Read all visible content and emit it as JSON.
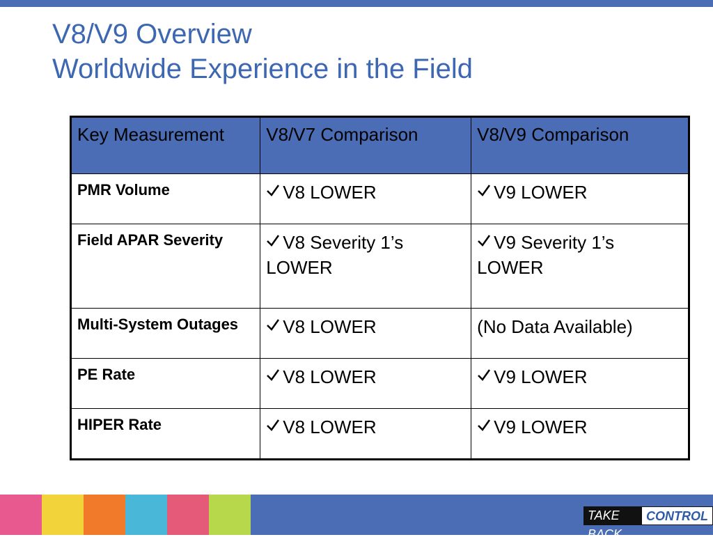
{
  "header": {
    "title_line1": "V8/V9 Overview",
    "title_line2": "Worldwide Experience in the Field"
  },
  "table": {
    "columns": [
      "Key Measurement",
      "V8/V7 Comparison",
      "V8/V9 Comparison"
    ],
    "rows": [
      [
        "PMR Volume",
        "V8 LOWER",
        "V9 LOWER"
      ],
      [
        "Field APAR Severity",
        "V8 Severity 1’s LOWER",
        "V9 Severity 1’s LOWER"
      ],
      [
        "Multi-System Outages",
        "V8 LOWER",
        "(No Data Available)"
      ],
      [
        "PE Rate",
        "V8 LOWER",
        "V9 LOWER"
      ],
      [
        "HIPER Rate",
        "V8 LOWER",
        "V9 LOWER"
      ]
    ]
  },
  "footer": {
    "logo_left": "TAKE BACK",
    "logo_right": "CONTROL"
  }
}
